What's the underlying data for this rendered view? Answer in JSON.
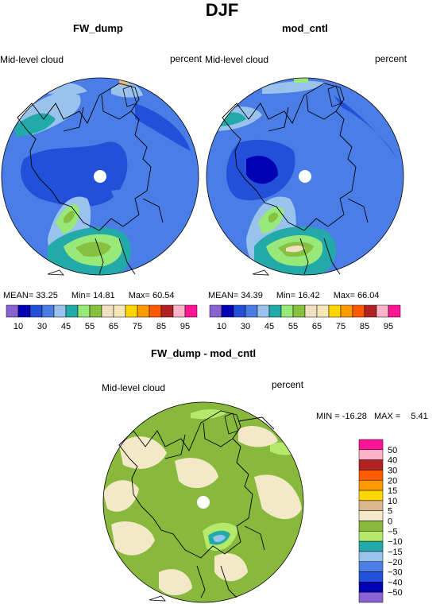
{
  "title": "DJF",
  "panels": [
    {
      "id": "fw",
      "title": "FW_dump",
      "left_label": "Mid-level cloud",
      "right_label": "percent",
      "stats": {
        "mean_label": "MEAN=",
        "mean": "33.25",
        "min_label": "Min=",
        "min": "14.81",
        "max_label": "Max=",
        "max": "60.54"
      }
    },
    {
      "id": "mc",
      "title": "mod_cntl",
      "left_label": "Mid-level cloud",
      "right_label": "percent",
      "stats": {
        "mean_label": "MEAN=",
        "mean": "34.39",
        "min_label": "Min=",
        "min": "16.42",
        "max_label": "Max=",
        "max": "66.04"
      }
    },
    {
      "id": "diff",
      "title": "FW_dump - mod_cntl",
      "left_label": "Mid-level cloud",
      "right_label": "percent",
      "stats": {
        "min_label": "MIN =",
        "min": "-16.28",
        "max_label": "MAX =",
        "max": "5.41"
      }
    }
  ],
  "chart_data": [
    {
      "type": "heatmap",
      "title": "FW_dump",
      "subtitle": "Mid-level cloud",
      "units": "percent",
      "projection": "polar stereographic",
      "levels": [
        10,
        20,
        30,
        40,
        45,
        50,
        55,
        60,
        65,
        70,
        75,
        80,
        85,
        90,
        95
      ],
      "tick_labels": [
        "10",
        "30",
        "45",
        "55",
        "65",
        "75",
        "85",
        "95"
      ],
      "colors": [
        "#8a63d2",
        "#0000b4",
        "#2250d8",
        "#4a7ee6",
        "#99c2ec",
        "#22aaa8",
        "#99e87a",
        "#88c040",
        "#f3e0c2",
        "#f3e8b8",
        "#ffd700",
        "#ff9a00",
        "#ff5a00",
        "#b22222",
        "#ffb3c9",
        "#ff1493"
      ],
      "stats": {
        "mean": 33.25,
        "min": 14.81,
        "max": 60.54
      }
    },
    {
      "type": "heatmap",
      "title": "mod_cntl",
      "subtitle": "Mid-level cloud",
      "units": "percent",
      "projection": "polar stereographic",
      "levels": [
        10,
        20,
        30,
        40,
        45,
        50,
        55,
        60,
        65,
        70,
        75,
        80,
        85,
        90,
        95
      ],
      "tick_labels": [
        "10",
        "30",
        "45",
        "55",
        "65",
        "75",
        "85",
        "95"
      ],
      "colors": [
        "#8a63d2",
        "#0000b4",
        "#2250d8",
        "#4a7ee6",
        "#99c2ec",
        "#22aaa8",
        "#99e87a",
        "#88c040",
        "#f3e0c2",
        "#f3e8b8",
        "#ffd700",
        "#ff9a00",
        "#ff5a00",
        "#b22222",
        "#ffb3c9",
        "#ff1493"
      ],
      "stats": {
        "mean": 34.39,
        "min": 16.42,
        "max": 66.04
      }
    },
    {
      "type": "heatmap",
      "title": "FW_dump - mod_cntl",
      "subtitle": "Mid-level cloud",
      "units": "percent",
      "projection": "polar stereographic",
      "levels": [
        50,
        40,
        30,
        20,
        15,
        10,
        5,
        0,
        -5,
        -10,
        -15,
        -20,
        -30,
        -40,
        -50
      ],
      "tick_labels": [
        "50",
        "40",
        "30",
        "20",
        "15",
        "10",
        "5",
        "0",
        "−5",
        "−10",
        "−15",
        "−20",
        "−30",
        "−40",
        "−50"
      ],
      "colors": [
        "#ff1493",
        "#ffb3c9",
        "#b22222",
        "#ff5a00",
        "#ff9a00",
        "#ffd700",
        "#dbb98c",
        "#f3e8c8",
        "#88b93c",
        "#b6e86a",
        "#22aaa8",
        "#99c2ec",
        "#4a7ee6",
        "#2250d8",
        "#0000b4",
        "#8a63d2"
      ],
      "stats": {
        "min": -16.28,
        "max": 5.41
      }
    }
  ]
}
